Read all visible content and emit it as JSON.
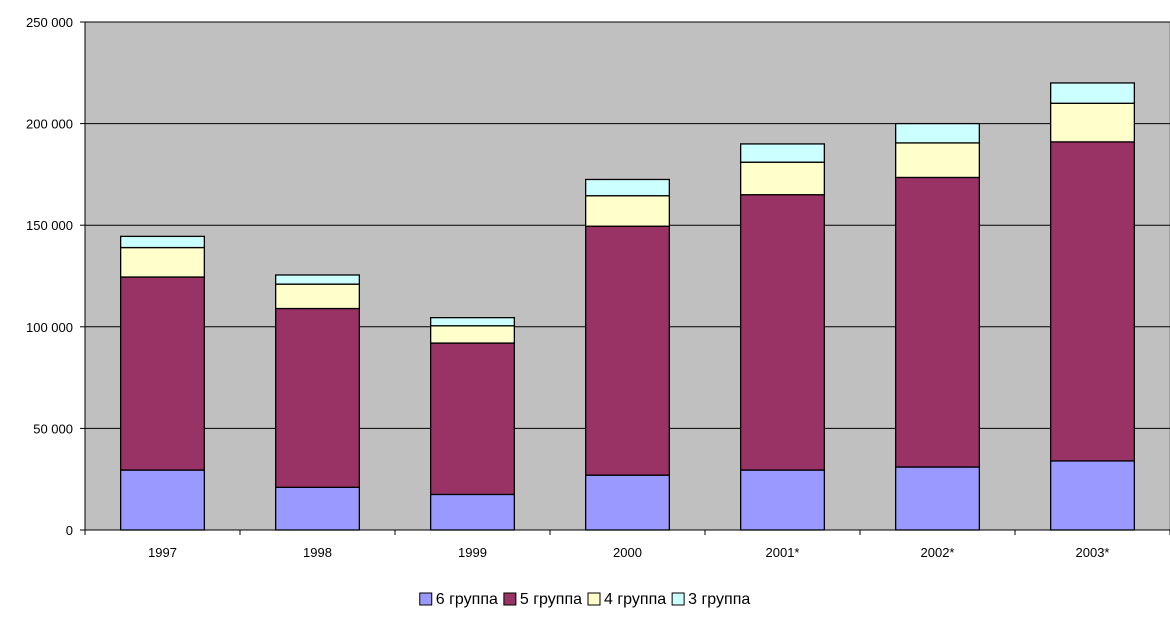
{
  "chart_data": {
    "type": "bar",
    "stacked": true,
    "categories": [
      "1997",
      "1998",
      "1999",
      "2000",
      "2001*",
      "2002*",
      "2003*"
    ],
    "series": [
      {
        "name": "6 группа",
        "color": "#9999ff",
        "values": [
          29500,
          21000,
          17500,
          27000,
          29500,
          31000,
          34000
        ]
      },
      {
        "name": "5 группа",
        "color": "#993366",
        "values": [
          95000,
          88000,
          74500,
          122500,
          135500,
          142500,
          157000
        ]
      },
      {
        "name": "4 группа",
        "color": "#ffffcc",
        "values": [
          14500,
          12000,
          8500,
          15000,
          16000,
          17000,
          19000
        ]
      },
      {
        "name": "3 группа",
        "color": "#ccffff",
        "values": [
          5500,
          4500,
          4000,
          8000,
          9000,
          9500,
          10000
        ]
      }
    ],
    "ylim": [
      0,
      250000
    ],
    "yticks": [
      0,
      50000,
      100000,
      150000,
      200000,
      250000
    ],
    "ytick_labels": [
      "0",
      "50 000",
      "100 000",
      "150 000",
      "200 000",
      "250 000"
    ],
    "grid": true,
    "plot_background": "#c0c0c0",
    "legend_position": "bottom"
  }
}
